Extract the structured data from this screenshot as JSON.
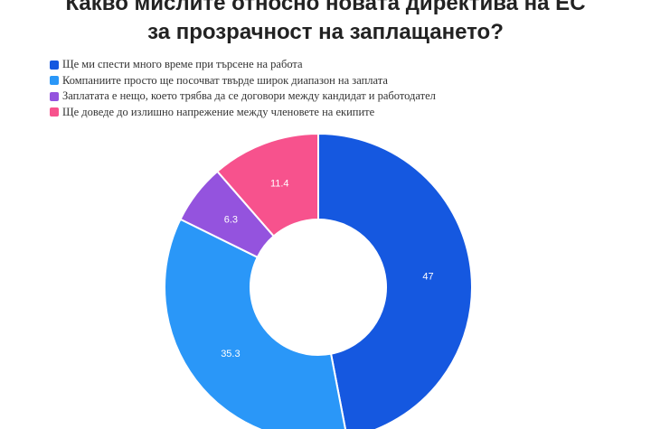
{
  "chart_data": {
    "type": "pie",
    "title_lines": [
      "Какво мислите относно новата директива на ЕС",
      "за прозрачност на заплащането?"
    ],
    "categories": [
      "Ще ми спести много време при търсене на работа",
      "Компаниите просто ще посочват твърде широк диапазон на заплата",
      "Заплатата е нещо, което трябва да се договори между кандидат и работодател",
      "Ще доведе до излишно напрежение между членовете на екипите"
    ],
    "values": [
      47,
      35.3,
      6.3,
      11.4
    ],
    "data_labels": [
      "47",
      "35.3",
      "6.3",
      "11.4"
    ],
    "colors": [
      "#1558e0",
      "#2a97f8",
      "#9453de",
      "#f7528d"
    ],
    "legend_position": "top-left",
    "donut": true
  }
}
